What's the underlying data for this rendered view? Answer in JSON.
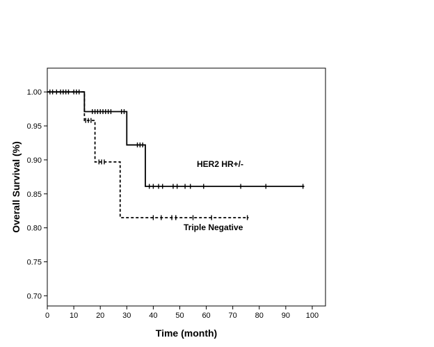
{
  "chart_data": {
    "type": "line",
    "title": "",
    "xlabel": "Time (month)",
    "ylabel": "Overall Survival (%)",
    "xlim": [
      0,
      105
    ],
    "ylim": [
      0.685,
      1.035
    ],
    "xticks": [
      0,
      10,
      20,
      30,
      40,
      50,
      60,
      70,
      80,
      90,
      100
    ],
    "xtick_labels": [
      "0",
      "10",
      "20",
      "30",
      "40",
      "50",
      "60",
      "70",
      "80",
      "90",
      "100"
    ],
    "yticks": [
      0.7,
      0.75,
      0.8,
      0.85,
      0.9,
      0.95,
      1.0
    ],
    "ytick_labels": [
      "0.70",
      "0.75",
      "0.80",
      "0.85",
      "0.90",
      "0.95",
      "1.00"
    ],
    "grid": false,
    "legend": "none",
    "series": [
      {
        "name": "HER2 HR+/-",
        "style": "solid",
        "steps": [
          [
            0,
            1.0
          ],
          [
            14,
            0.971
          ],
          [
            30,
            0.922
          ],
          [
            37,
            0.861
          ],
          [
            97,
            0.861
          ]
        ],
        "censored": [
          [
            1,
            1.0
          ],
          [
            2,
            1.0
          ],
          [
            3.5,
            1.0
          ],
          [
            5,
            1.0
          ],
          [
            6,
            1.0
          ],
          [
            7,
            1.0
          ],
          [
            8,
            1.0
          ],
          [
            10,
            1.0
          ],
          [
            11,
            1.0
          ],
          [
            12,
            1.0
          ],
          [
            17,
            0.971
          ],
          [
            18,
            0.971
          ],
          [
            19,
            0.971
          ],
          [
            20,
            0.971
          ],
          [
            21,
            0.971
          ],
          [
            22,
            0.971
          ],
          [
            23,
            0.971
          ],
          [
            24,
            0.971
          ],
          [
            28,
            0.971
          ],
          [
            29,
            0.971
          ],
          [
            34,
            0.922
          ],
          [
            35,
            0.922
          ],
          [
            36,
            0.922
          ],
          [
            38.5,
            0.861
          ],
          [
            40,
            0.861
          ],
          [
            42,
            0.861
          ],
          [
            43.5,
            0.861
          ],
          [
            47.5,
            0.861
          ],
          [
            49,
            0.861
          ],
          [
            52,
            0.861
          ],
          [
            54,
            0.861
          ],
          [
            59,
            0.861
          ],
          [
            73,
            0.861
          ],
          [
            82.5,
            0.861
          ],
          [
            96.5,
            0.861
          ]
        ]
      },
      {
        "name": "Triple Negative",
        "style": "dashed",
        "steps": [
          [
            0,
            1.0
          ],
          [
            14,
            0.958
          ],
          [
            18,
            0.897
          ],
          [
            27.5,
            0.815
          ],
          [
            76,
            0.815
          ]
        ],
        "censored": [
          [
            14.5,
            0.958
          ],
          [
            15.5,
            0.958
          ],
          [
            16.5,
            0.958
          ],
          [
            19.5,
            0.897
          ],
          [
            20.5,
            0.897
          ],
          [
            21.5,
            0.897
          ],
          [
            40,
            0.815
          ],
          [
            43,
            0.815
          ],
          [
            47,
            0.815
          ],
          [
            48.5,
            0.815
          ],
          [
            55,
            0.815
          ],
          [
            62,
            0.815
          ],
          [
            75.5,
            0.815
          ]
        ]
      }
    ]
  }
}
